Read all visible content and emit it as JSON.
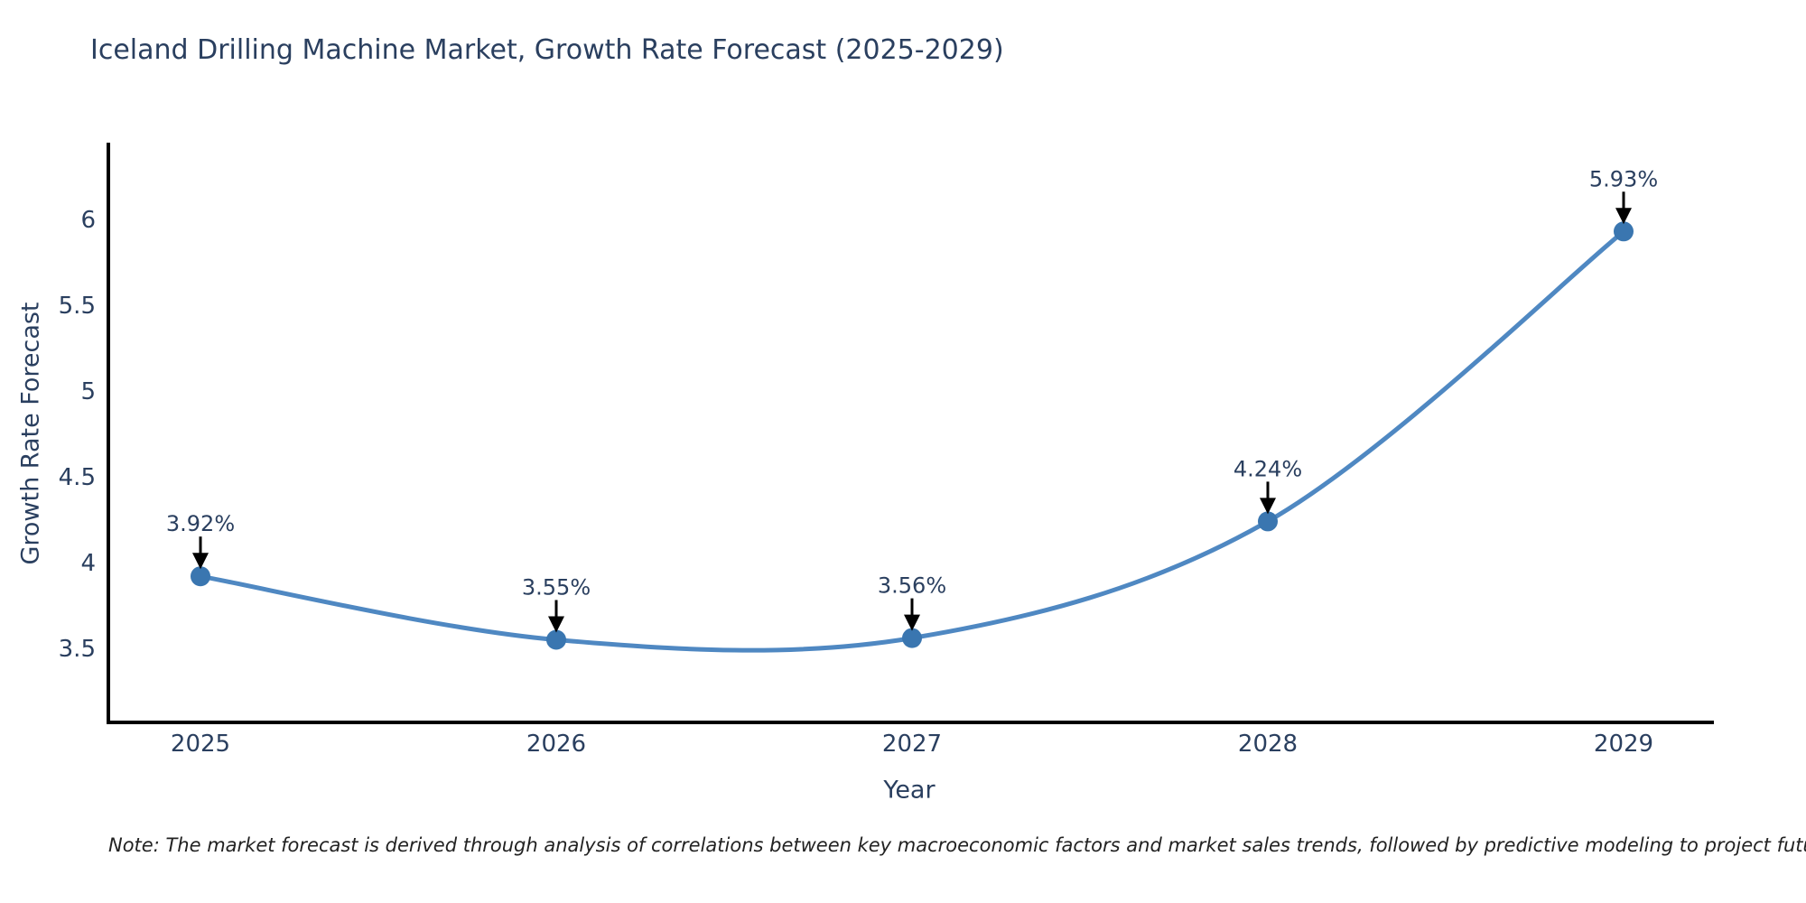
{
  "chart": {
    "title": "Iceland Drilling Machine Market, Growth Rate Forecast (2025-2029)",
    "xlabel": "Year",
    "ylabel": "Growth Rate Forecast",
    "note": "Note: The market forecast is derived through analysis of correlations between key macroeconomic factors and market sales trends, followed by predictive modeling to project future sales"
  },
  "chart_data": {
    "type": "line",
    "title": "Iceland Drilling Machine Market, Growth Rate Forecast (2025-2029)",
    "xlabel": "Year",
    "ylabel": "Growth Rate Forecast",
    "x": [
      2025,
      2026,
      2027,
      2028,
      2029
    ],
    "xtick_labels": [
      "2025",
      "2026",
      "2027",
      "2028",
      "2029"
    ],
    "values": [
      3.92,
      3.55,
      3.56,
      4.24,
      5.93
    ],
    "point_labels": [
      "3.92%",
      "3.55%",
      "3.56%",
      "4.24%",
      "5.93%"
    ],
    "yticks": [
      3.5,
      4,
      4.5,
      5,
      5.5,
      6
    ],
    "ytick_labels": [
      "3.5",
      "4",
      "4.5",
      "5",
      "5.5",
      "6"
    ],
    "ylim": [
      3.1,
      6.44
    ],
    "grid": false,
    "legend": "none",
    "line_shape": "spline",
    "line_color": "#4f88c2",
    "marker_color": "#3a76b0",
    "text_color": "#2a3f5f",
    "axis_color": "#000000",
    "annotation_arrow_color": "#000000"
  }
}
